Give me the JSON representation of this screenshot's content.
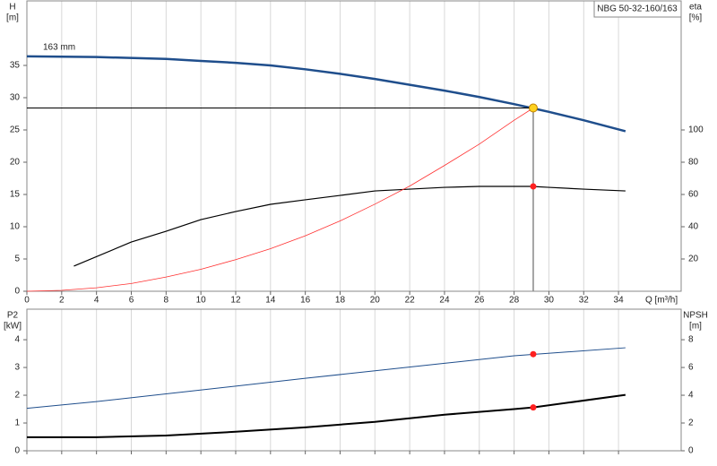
{
  "chart_data": [
    {
      "type": "line",
      "title": "NBG 50-32-160/163",
      "ylabel": "H",
      "yunit": "[m]",
      "y2label": "eta",
      "y2unit": "[%]",
      "xlabel": "Q [m³/h]",
      "xlim": [
        0,
        37.6
      ],
      "xticks": [
        0,
        2,
        4,
        6,
        8,
        10,
        12,
        14,
        16,
        18,
        20,
        22,
        24,
        26,
        28,
        30,
        32,
        34
      ],
      "ylim": [
        0,
        45
      ],
      "yticks": [
        0,
        5,
        10,
        15,
        20,
        25,
        30,
        35
      ],
      "y2lim": [
        0,
        180
      ],
      "y2ticks": [
        20,
        40,
        60,
        80,
        100
      ],
      "grid": "x",
      "series": [
        {
          "label": "163 mm",
          "color": "#1f4e8c",
          "width": 2.5,
          "x": [
            0,
            4,
            8,
            10,
            12,
            14,
            16,
            18,
            20,
            22,
            24,
            26,
            28,
            29,
            30,
            32,
            34.4
          ],
          "values": [
            36.4,
            36.3,
            36.0,
            35.7,
            35.4,
            35.0,
            34.4,
            33.7,
            32.9,
            32.0,
            31.1,
            30.1,
            29.0,
            28.4,
            27.8,
            26.5,
            24.8
          ]
        },
        {
          "color": "#000000",
          "width": 1.2,
          "axis": "y2",
          "x": [
            2.7,
            6,
            8,
            10,
            12,
            14,
            16,
            18,
            20,
            22,
            24,
            26,
            28,
            29,
            30,
            32,
            34.4
          ],
          "values": [
            15.6,
            30.5,
            37.2,
            44.4,
            49.4,
            53.9,
            56.7,
            59.4,
            62.2,
            63.3,
            64.4,
            65,
            65,
            65,
            64.4,
            63.3,
            62.2
          ]
        },
        {
          "color": "#ff3030",
          "width": 0.8,
          "x": [
            0,
            2,
            4,
            6,
            8,
            10,
            12,
            14,
            16,
            18,
            20,
            22,
            24,
            26,
            28,
            29.1
          ],
          "values": [
            0,
            0.14,
            0.54,
            1.2,
            2.2,
            3.4,
            4.9,
            6.6,
            8.6,
            10.9,
            13.5,
            16.3,
            19.5,
            22.8,
            26.5,
            28.4
          ]
        }
      ],
      "points": [
        {
          "x": 29.1,
          "y": 28.4,
          "color": "#ffd21f",
          "guides": true
        },
        {
          "x": 29.1,
          "y": 65,
          "color": "#ff2020",
          "axis": "y2"
        }
      ]
    },
    {
      "type": "line",
      "ylabel": "P2",
      "yunit": "[kW]",
      "y2label": "NPSH",
      "y2unit": "[m]",
      "xlim": [
        0,
        37.6
      ],
      "xticks": [
        0,
        2,
        4,
        6,
        8,
        10,
        12,
        14,
        16,
        18,
        20,
        22,
        24,
        26,
        28,
        30,
        32,
        34
      ],
      "ylim": [
        0,
        5.1
      ],
      "yticks": [
        0,
        1,
        2,
        3,
        4
      ],
      "y2lim": [
        0,
        10.2
      ],
      "y2ticks": [
        0,
        2,
        4,
        6,
        8
      ],
      "grid": "x",
      "series": [
        {
          "color": "#1f4e8c",
          "width": 1,
          "x": [
            0,
            4,
            8,
            12,
            16,
            20,
            24,
            28,
            34.4
          ],
          "values": [
            1.53,
            1.77,
            2.05,
            2.33,
            2.61,
            2.88,
            3.15,
            3.42,
            3.71
          ]
        },
        {
          "color": "#000000",
          "width": 2,
          "axis": "y2",
          "x": [
            0,
            4,
            8,
            12,
            16,
            20,
            24,
            28,
            29.1,
            34.4
          ],
          "values": [
            0.98,
            0.98,
            1.1,
            1.37,
            1.69,
            2.08,
            2.6,
            3.0,
            3.12,
            4.03
          ]
        }
      ],
      "points": [
        {
          "x": 29.1,
          "y": 3.48,
          "color": "#ff2020"
        },
        {
          "x": 29.1,
          "y": 3.12,
          "color": "#ff2020",
          "axis": "y2"
        }
      ]
    }
  ]
}
